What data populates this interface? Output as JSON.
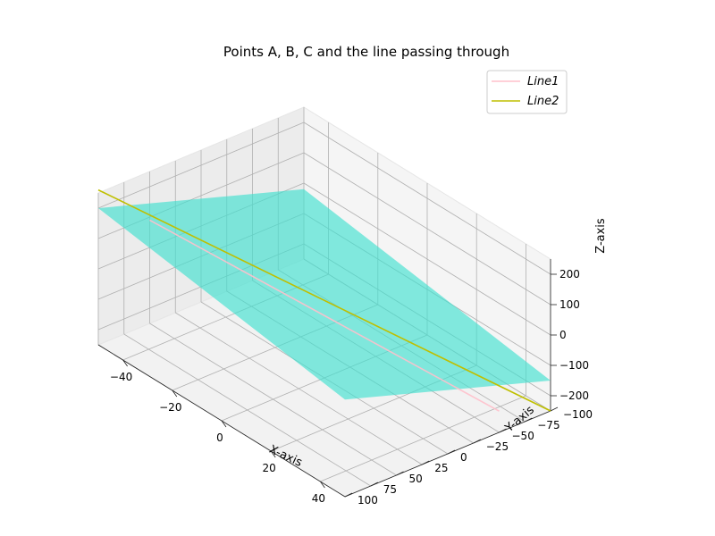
{
  "chart_data": {
    "type": "line",
    "projection": "3d",
    "title": "Points A, B, C and the line passing through",
    "xlabel": "X-axis",
    "ylabel": "Y-axis",
    "zlabel": "Z-axis",
    "xlim": [
      -50,
      50
    ],
    "ylim": [
      -100,
      100
    ],
    "zlim": [
      -250,
      250
    ],
    "x_ticks": [
      "−40",
      "−20",
      "0",
      "20",
      "40"
    ],
    "y_ticks": [
      "−100",
      "−75",
      "−50",
      "−25",
      "0",
      "25",
      "50",
      "75",
      "100"
    ],
    "z_ticks": [
      "−200",
      "−100",
      "0",
      "100",
      "200"
    ],
    "grid": true,
    "legend_position": "top-right",
    "colors": {
      "line1": "#ffc0cb",
      "line2": "#bfbf00",
      "plane": "#40e0d0"
    },
    "series": [
      {
        "name": "Line1",
        "color": "#ffc0cb",
        "points": [
          [
            -50,
            50,
            90
          ],
          [
            50,
            -50,
            -180
          ]
        ]
      },
      {
        "name": "Line2",
        "color": "#bfbf00",
        "points": [
          [
            -50,
            100,
            260
          ],
          [
            50,
            -100,
            -250
          ]
        ]
      }
    ],
    "surface": {
      "name": "plane",
      "color": "#40e0d0",
      "alpha": 0.65,
      "corners": [
        [
          -50,
          -100,
          -20
        ],
        [
          50,
          -100,
          -150
        ],
        [
          50,
          100,
          70
        ],
        [
          -50,
          100,
          200
        ]
      ]
    }
  }
}
